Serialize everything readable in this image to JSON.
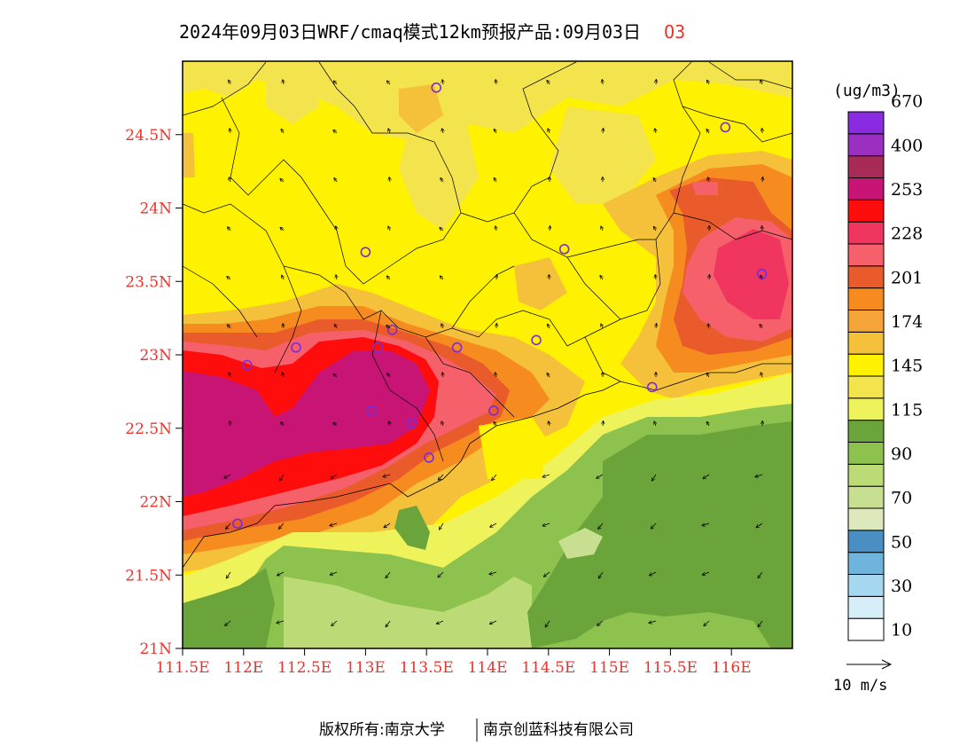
{
  "title": {
    "text": "2024年09月03日WRF/cmaq模式12km预报产品:09月03日",
    "species": "O3"
  },
  "map": {
    "lon_range": [
      111.5,
      116.5
    ],
    "lat_range": [
      21.0,
      25.0
    ],
    "lon_ticks": [
      "111.5E",
      "112E",
      "112.5E",
      "113E",
      "113.5E",
      "114E",
      "114.5E",
      "115E",
      "115.5E",
      "116E"
    ],
    "lat_ticks": [
      "21N",
      "21.5N",
      "22N",
      "22.5N",
      "23N",
      "23.5N",
      "24N",
      "24.5N"
    ],
    "lat_tick_values": [
      21,
      21.5,
      22,
      22.5,
      23,
      23.5,
      24,
      24.5
    ],
    "lon_tick_values": [
      111.5,
      112,
      112.5,
      113,
      113.5,
      114,
      114.5,
      115,
      115.5,
      116
    ]
  },
  "legend": {
    "unit": "(ug/m3)",
    "colors": [
      "#ffffff",
      "#d6eef7",
      "#a5d8f0",
      "#6fb4dd",
      "#4a8fc4",
      "#dde8bd",
      "#c8de91",
      "#bcdb76",
      "#8cc24d",
      "#6ba43a",
      "#eef35c",
      "#f3e34c",
      "#fff200",
      "#f6c13a",
      "#f6a53b",
      "#f68b1f",
      "#ea5b2b",
      "#f6606b",
      "#f0355e",
      "#ff0c0c",
      "#c81474",
      "#a72a57",
      "#9b2fbf",
      "#8a2be2"
    ],
    "labels": [
      "10",
      "30",
      "50",
      "70",
      "90",
      "115",
      "145",
      "174",
      "201",
      "228",
      "253",
      "400",
      "670"
    ]
  },
  "wind": {
    "label": "10 m/s"
  },
  "stations": [
    [
      113.58,
      24.82
    ],
    [
      115.95,
      24.55
    ],
    [
      113.0,
      23.7
    ],
    [
      114.63,
      23.72
    ],
    [
      116.25,
      23.55
    ],
    [
      112.43,
      23.05
    ],
    [
      113.1,
      23.05
    ],
    [
      113.22,
      23.17
    ],
    [
      113.75,
      23.05
    ],
    [
      114.4,
      23.1
    ],
    [
      112.03,
      22.93
    ],
    [
      113.05,
      22.62
    ],
    [
      113.38,
      22.53
    ],
    [
      114.05,
      22.62
    ],
    [
      113.52,
      22.3
    ],
    [
      115.35,
      22.78
    ],
    [
      111.95,
      21.85
    ]
  ],
  "copyright": {
    "left": "版权所有:南京大学",
    "right": "南京创蓝科技有限公司"
  }
}
